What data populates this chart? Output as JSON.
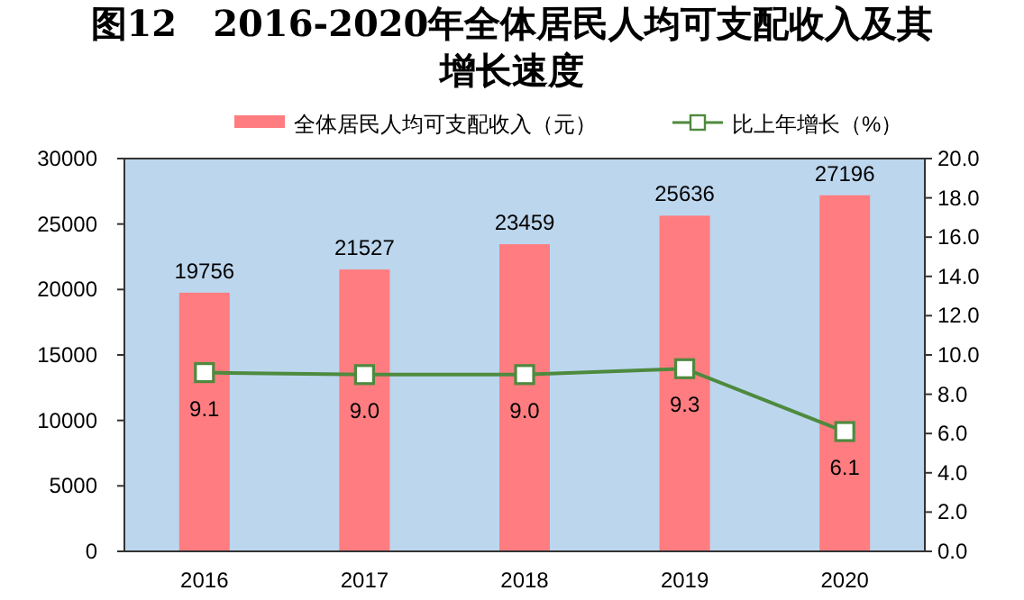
{
  "chart_data": {
    "type": "bar",
    "title": "图12　2016-2020年全体居民人均可支配收入及其增长速度",
    "categories": [
      "2016",
      "2017",
      "2018",
      "2019",
      "2020"
    ],
    "series": [
      {
        "name": "全体居民人均可支配收入（元）",
        "color": "#ff7c80",
        "values": [
          19756,
          21527,
          23459,
          25636,
          27196
        ],
        "value_labels": [
          "19756",
          "21527",
          "23459",
          "25636",
          "27196"
        ]
      },
      {
        "name": "比上年增长（%）",
        "type": "line",
        "axis": "y2",
        "color": "#4e8a3e",
        "marker": "square",
        "values": [
          9.1,
          9.0,
          9.0,
          9.3,
          6.1
        ],
        "value_labels": [
          "9.1",
          "9.0",
          "9.0",
          "9.3",
          "6.1"
        ]
      }
    ],
    "ylim": [
      0,
      30000
    ],
    "yticks": [
      0,
      5000,
      10000,
      15000,
      20000,
      25000,
      30000
    ],
    "y2lim": [
      0,
      20
    ],
    "y2ticks": [
      {
        "value": 0,
        "label": "0.0"
      },
      {
        "value": 2,
        "label": "2.0"
      },
      {
        "value": 4,
        "label": "4.0"
      },
      {
        "value": 6,
        "label": "6.0"
      },
      {
        "value": 8,
        "label": "8.0"
      },
      {
        "value": 10,
        "label": "10.0"
      },
      {
        "value": 12,
        "label": "12.0"
      },
      {
        "value": 14,
        "label": "14.0"
      },
      {
        "value": 16,
        "label": "16.0"
      },
      {
        "value": 18,
        "label": "18.0"
      },
      {
        "value": 20,
        "label": "20.0"
      }
    ],
    "legend": "top",
    "grid": false
  }
}
